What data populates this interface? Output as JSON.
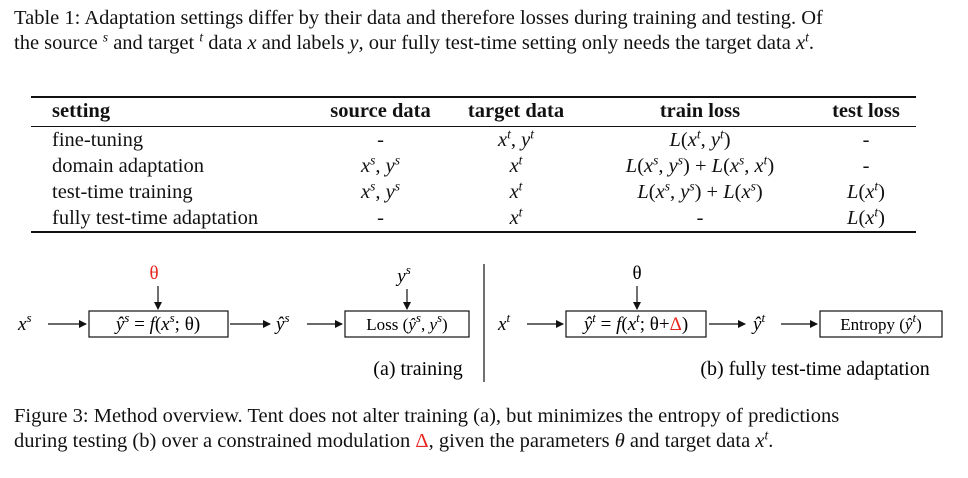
{
  "table": {
    "caption_label": "Table 1:",
    "caption_line1": "Adaptation settings differ by their data and therefore losses during training and testing. Of",
    "caption_line2_a": "the source",
    "caption_sup_s": "s",
    "caption_line2_b": "and target",
    "caption_sup_t": "t",
    "caption_line2_c": "data",
    "caption_x": "x",
    "caption_line2_d": "and labels",
    "caption_y": "y",
    "caption_line2_e": ", our fully test-time setting only needs the target data",
    "caption_end": ".",
    "headers": [
      "setting",
      "source data",
      "target data",
      "train loss",
      "test loss"
    ],
    "rows": [
      [
        "fine-tuning",
        "-",
        "x^t, y^t",
        "L(x^t, y^t)",
        "-"
      ],
      [
        "domain adaptation",
        "x^s, y^s",
        "x^t",
        "L(x^s, y^s) + L(x^s, x^t)",
        "-"
      ],
      [
        "test-time training",
        "x^s, y^s",
        "x^t",
        "L(x^s, y^s) + L(x^s)",
        "L(x^t)"
      ],
      [
        "fully test-time adaptation",
        "-",
        "x^t",
        "-",
        "L(x^t)"
      ]
    ]
  },
  "diagram": {
    "training": {
      "input": "x^s",
      "param": "θ",
      "box1": "ŷ^s = f(x^s; θ)",
      "output": "ŷ^s",
      "label_input": "y^s",
      "box2": "Loss (ŷ^s, y^s)",
      "caption": "(a) training"
    },
    "adaptation": {
      "input": "x^t",
      "param": "θ",
      "box1": "ŷ^t = f(x^t; θ+Δ)",
      "output": "ŷ^t",
      "box2": "Entropy (ŷ^t)",
      "caption": "(b) fully test-time adaptation"
    }
  },
  "figure": {
    "caption_label": "Figure 3:",
    "caption_line1": "Method overview. Tent does not alter training (a), but minimizes the entropy of predictions",
    "caption_line2_a": "during testing (b) over a constrained modulation",
    "caption_delta": "Δ",
    "caption_line2_b": ", given the parameters",
    "caption_theta": "θ",
    "caption_line2_c": "and target data",
    "caption_x": "x",
    "caption_sup_t": "t",
    "caption_end": "."
  },
  "colors": {
    "accent_red": "#e8251e",
    "text": "#111111"
  }
}
